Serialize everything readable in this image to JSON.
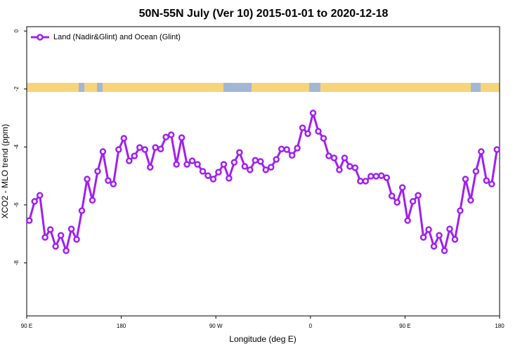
{
  "chart_data": {
    "type": "line",
    "title": "50N-55N July (Ver 10)   2015-01-01 to 2020-12-18",
    "x_label": "Longitude (deg E)",
    "y_label": "XCO2 - MLO trend (ppm)",
    "x": [
      92.5,
      97.5,
      102.5,
      107.5,
      112.5,
      117.5,
      122.5,
      127.5,
      132.5,
      137.5,
      142.5,
      147.5,
      152.5,
      157.5,
      162.5,
      167.5,
      172.5,
      177.5,
      182.5,
      187.5,
      192.5,
      197.5,
      202.5,
      207.5,
      212.5,
      217.5,
      222.5,
      227.5,
      232.5,
      237.5,
      242.5,
      247.5,
      252.5,
      257.5,
      262.5,
      267.5,
      272.5,
      277.5,
      282.5,
      287.5,
      292.5,
      297.5,
      302.5,
      307.5,
      312.5,
      317.5,
      322.5,
      327.5,
      332.5,
      337.5,
      342.5,
      347.5,
      352.5,
      357.5,
      362.5,
      367.5,
      372.5,
      377.5,
      382.5,
      387.5,
      392.5,
      397.5,
      402.5,
      407.5,
      412.5,
      417.5,
      422.5,
      427.5,
      432.5,
      437.5,
      442.5,
      447.5,
      452.5,
      457.5,
      462.5,
      467.5,
      472.5,
      477.5,
      482.5,
      487.5,
      492.5,
      497.5,
      502.5,
      507.5,
      512.5,
      517.5,
      522.5,
      527.5,
      532.5,
      537.5
    ],
    "series": [
      {
        "name": "Land (Nadir&Glint) and Ocean (Glint)",
        "color": "#a020f0",
        "values": [
          -6.54,
          -5.88,
          -5.67,
          -7.12,
          -6.85,
          -7.43,
          -7.05,
          -7.58,
          -6.83,
          -7.19,
          -6.2,
          -5.11,
          -5.84,
          -4.84,
          -4.16,
          -5.16,
          -5.28,
          -4.09,
          -3.7,
          -4.48,
          -4.31,
          -4.02,
          -4.09,
          -4.7,
          -4.02,
          -4.07,
          -3.66,
          -3.58,
          -4.6,
          -3.68,
          -4.6,
          -4.48,
          -4.6,
          -4.84,
          -4.99,
          -5.11,
          -4.87,
          -4.6,
          -5.08,
          -4.53,
          -4.19,
          -4.67,
          -4.79,
          -4.46,
          -4.5,
          -4.79,
          -4.7,
          -4.43,
          -4.07,
          -4.09,
          -4.29,
          -4.04,
          -3.34,
          -3.54,
          -2.83,
          -3.46,
          -3.7,
          -4.31,
          -4.38,
          -4.79,
          -4.38,
          -4.67,
          -4.72,
          -5.18,
          -5.18,
          -5.01,
          -5.01,
          -4.99,
          -5.06,
          -5.69,
          -5.91,
          -5.4,
          -6.54,
          -5.88,
          -5.67,
          -7.12,
          -6.85,
          -7.43,
          -7.05,
          -7.58,
          -6.83,
          -7.19,
          -6.2,
          -5.11,
          -5.84,
          -4.84,
          -4.16,
          -5.16,
          -5.28,
          -4.09
        ]
      }
    ],
    "xlim": [
      90,
      540
    ],
    "xticks": [
      {
        "value": 90,
        "label": "90 E"
      },
      180,
      {
        "value": 270,
        "label": "90 W"
      },
      {
        "value": 360,
        "label": "0"
      },
      {
        "value": 450,
        "label": "90 E"
      },
      {
        "value": 540,
        "label": "180"
      }
    ],
    "ylim": [
      -9.83,
      0.15
    ],
    "yticks": [
      0,
      -2,
      -4,
      -6,
      -8
    ],
    "legend": "top-left"
  }
}
